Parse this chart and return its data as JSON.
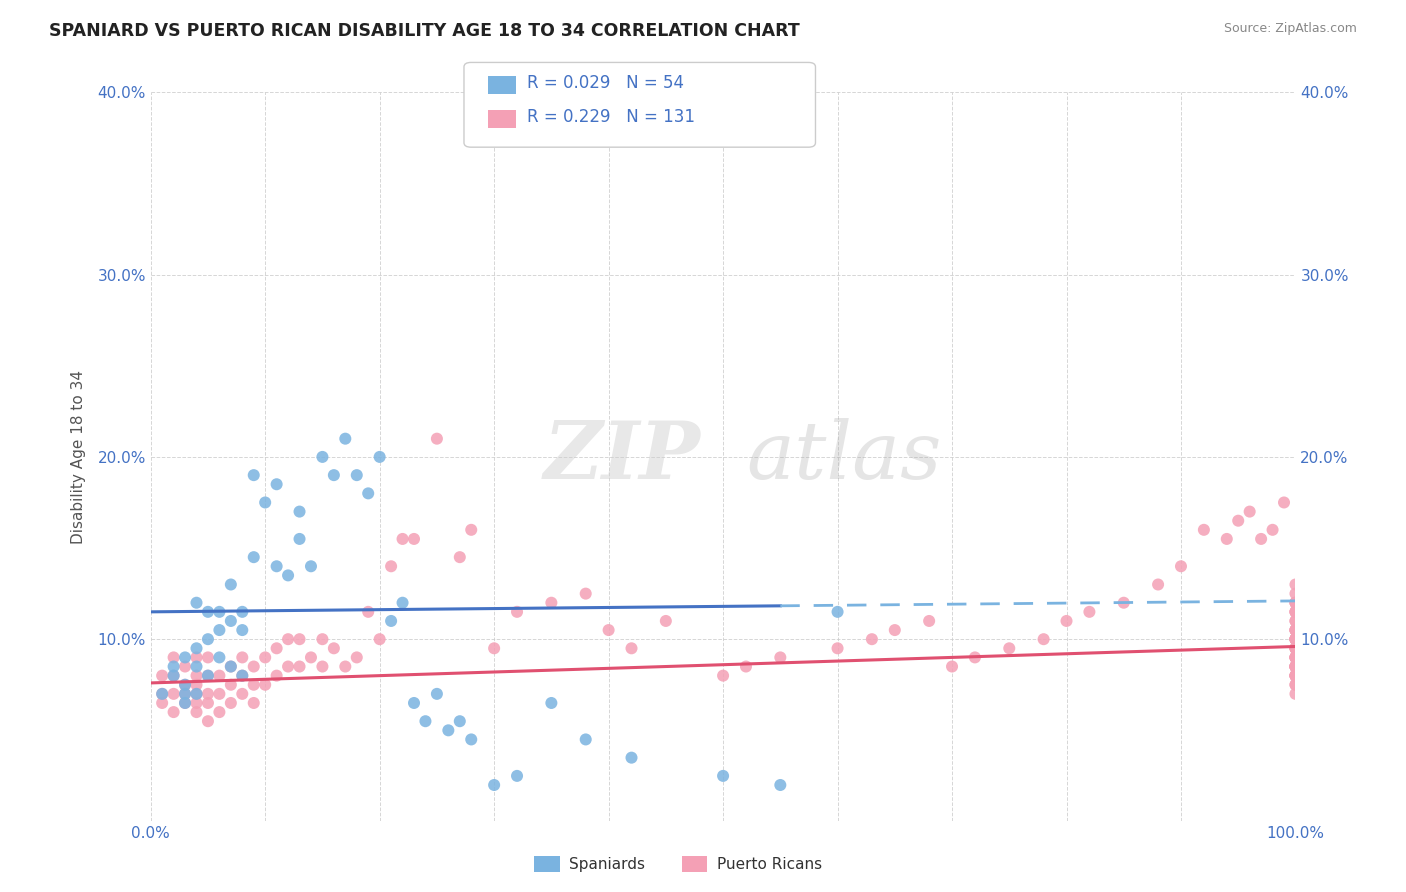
{
  "title": "SPANIARD VS PUERTO RICAN DISABILITY AGE 18 TO 34 CORRELATION CHART",
  "source": "Source: ZipAtlas.com",
  "ylabel": "Disability Age 18 to 34",
  "xlim": [
    0,
    1.0
  ],
  "ylim": [
    0,
    0.4
  ],
  "spaniard_color": "#7ab3e0",
  "puerto_rican_color": "#f4a0b5",
  "spaniard_R": 0.029,
  "spaniard_N": 54,
  "puerto_rican_R": 0.229,
  "puerto_rican_N": 131,
  "legend_text_color": "#4472c4",
  "watermark_zip": "ZIP",
  "watermark_atlas": "atlas",
  "spaniard_x": [
    0.01,
    0.02,
    0.02,
    0.03,
    0.03,
    0.03,
    0.03,
    0.04,
    0.04,
    0.04,
    0.04,
    0.05,
    0.05,
    0.05,
    0.06,
    0.06,
    0.06,
    0.07,
    0.07,
    0.07,
    0.08,
    0.08,
    0.08,
    0.09,
    0.09,
    0.1,
    0.11,
    0.11,
    0.12,
    0.13,
    0.13,
    0.14,
    0.15,
    0.16,
    0.17,
    0.18,
    0.19,
    0.2,
    0.21,
    0.22,
    0.23,
    0.24,
    0.25,
    0.26,
    0.27,
    0.28,
    0.3,
    0.32,
    0.35,
    0.38,
    0.42,
    0.5,
    0.55,
    0.6
  ],
  "spaniard_y": [
    0.07,
    0.085,
    0.08,
    0.09,
    0.075,
    0.07,
    0.065,
    0.12,
    0.095,
    0.085,
    0.07,
    0.115,
    0.1,
    0.08,
    0.115,
    0.105,
    0.09,
    0.13,
    0.11,
    0.085,
    0.115,
    0.105,
    0.08,
    0.145,
    0.19,
    0.175,
    0.185,
    0.14,
    0.135,
    0.155,
    0.17,
    0.14,
    0.2,
    0.19,
    0.21,
    0.19,
    0.18,
    0.2,
    0.11,
    0.12,
    0.065,
    0.055,
    0.07,
    0.05,
    0.055,
    0.045,
    0.02,
    0.025,
    0.065,
    0.045,
    0.035,
    0.025,
    0.02,
    0.115
  ],
  "puerto_rican_x": [
    0.01,
    0.01,
    0.01,
    0.02,
    0.02,
    0.02,
    0.02,
    0.03,
    0.03,
    0.03,
    0.03,
    0.04,
    0.04,
    0.04,
    0.04,
    0.04,
    0.04,
    0.05,
    0.05,
    0.05,
    0.05,
    0.05,
    0.06,
    0.06,
    0.06,
    0.07,
    0.07,
    0.07,
    0.08,
    0.08,
    0.08,
    0.09,
    0.09,
    0.09,
    0.1,
    0.1,
    0.11,
    0.11,
    0.12,
    0.12,
    0.13,
    0.13,
    0.14,
    0.15,
    0.15,
    0.16,
    0.17,
    0.18,
    0.19,
    0.2,
    0.21,
    0.22,
    0.23,
    0.25,
    0.27,
    0.28,
    0.3,
    0.32,
    0.35,
    0.38,
    0.4,
    0.42,
    0.45,
    0.5,
    0.52,
    0.55,
    0.6,
    0.63,
    0.65,
    0.68,
    0.7,
    0.72,
    0.75,
    0.78,
    0.8,
    0.82,
    0.85,
    0.88,
    0.9,
    0.92,
    0.94,
    0.95,
    0.96,
    0.97,
    0.98,
    0.99,
    1.0,
    1.0,
    1.0,
    1.0,
    1.0,
    1.0,
    1.0,
    1.0,
    1.0,
    1.0,
    1.0,
    1.0,
    1.0,
    1.0,
    1.0,
    1.0,
    1.0,
    1.0,
    1.0,
    1.0,
    1.0,
    1.0,
    1.0,
    1.0,
    1.0,
    1.0,
    1.0,
    1.0,
    1.0,
    1.0,
    1.0,
    1.0,
    1.0,
    1.0,
    1.0,
    1.0,
    1.0,
    1.0,
    1.0,
    1.0,
    1.0,
    1.0,
    1.0,
    1.0,
    1.0
  ],
  "puerto_rican_y": [
    0.065,
    0.07,
    0.08,
    0.06,
    0.07,
    0.08,
    0.09,
    0.065,
    0.07,
    0.075,
    0.085,
    0.06,
    0.065,
    0.07,
    0.075,
    0.08,
    0.09,
    0.055,
    0.065,
    0.07,
    0.08,
    0.09,
    0.06,
    0.07,
    0.08,
    0.065,
    0.075,
    0.085,
    0.07,
    0.08,
    0.09,
    0.065,
    0.075,
    0.085,
    0.075,
    0.09,
    0.08,
    0.095,
    0.085,
    0.1,
    0.085,
    0.1,
    0.09,
    0.085,
    0.1,
    0.095,
    0.085,
    0.09,
    0.115,
    0.1,
    0.14,
    0.155,
    0.155,
    0.21,
    0.145,
    0.16,
    0.095,
    0.115,
    0.12,
    0.125,
    0.105,
    0.095,
    0.11,
    0.08,
    0.085,
    0.09,
    0.095,
    0.1,
    0.105,
    0.11,
    0.085,
    0.09,
    0.095,
    0.1,
    0.11,
    0.115,
    0.12,
    0.13,
    0.14,
    0.16,
    0.155,
    0.165,
    0.17,
    0.155,
    0.16,
    0.175,
    0.11,
    0.115,
    0.12,
    0.105,
    0.1,
    0.115,
    0.105,
    0.09,
    0.085,
    0.095,
    0.08,
    0.085,
    0.1,
    0.105,
    0.115,
    0.12,
    0.125,
    0.13,
    0.095,
    0.085,
    0.08,
    0.075,
    0.12,
    0.09,
    0.085,
    0.08,
    0.1,
    0.095,
    0.085,
    0.1,
    0.085,
    0.075,
    0.07,
    0.1,
    0.09,
    0.085,
    0.08,
    0.095,
    0.085,
    0.09,
    0.1,
    0.105,
    0.11,
    0.08,
    0.09
  ]
}
